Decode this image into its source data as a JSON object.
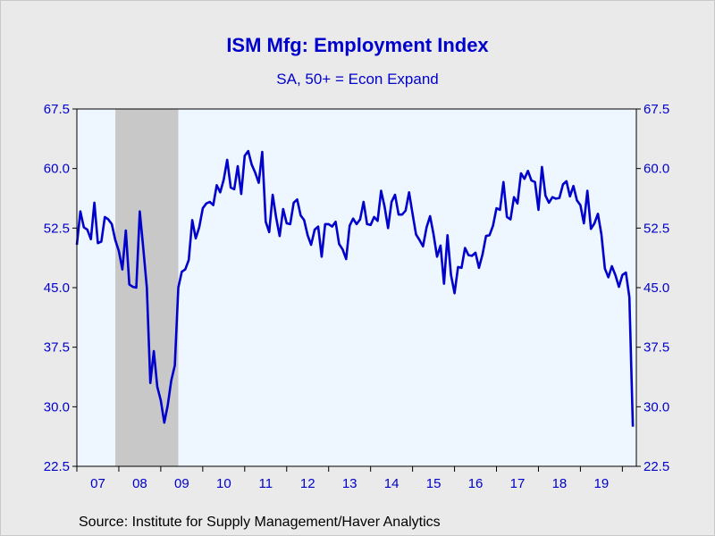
{
  "chart_data": {
    "type": "line",
    "title": "ISM Mfg: Employment Index",
    "subtitle": "SA, 50+ = Econ Expand",
    "source": "Source:  Institute for Supply Management/Haver Analytics",
    "ylim": [
      22.5,
      67.5
    ],
    "yticks": [
      "67.5",
      "60.0",
      "52.5",
      "45.0",
      "37.5",
      "30.0",
      "22.5"
    ],
    "ytick_values": [
      67.5,
      60.0,
      52.5,
      45.0,
      37.5,
      30.0,
      22.5
    ],
    "xlim": [
      2007.0,
      2020.333
    ],
    "x_tick_labels": [
      "07",
      "08",
      "09",
      "10",
      "11",
      "12",
      "13",
      "14",
      "15",
      "16",
      "17",
      "18",
      "19"
    ],
    "x_tick_years": [
      2007,
      2008,
      2009,
      2010,
      2011,
      2012,
      2013,
      2014,
      2015,
      2016,
      2017,
      2018,
      2019
    ],
    "recession": [
      2007.917,
      2009.417
    ],
    "grid": false,
    "colors": {
      "line": "#0000cc",
      "plot_bg": "#eef6ff",
      "recession": "#c8c8c8",
      "text": "#0000cc"
    },
    "series": [
      {
        "start": "2007-01",
        "values": [
          50.4,
          54.6,
          52.6,
          52.3,
          51.1,
          55.7,
          50.6,
          50.8,
          53.9,
          53.6,
          53.0,
          51.0,
          49.6,
          47.3,
          52.2,
          45.4,
          45.1,
          45.0,
          54.6,
          50.0,
          45.0,
          33.0,
          37.0,
          32.5,
          30.8,
          28.0,
          30.2,
          33.3,
          35.2,
          45.0,
          47.0,
          47.3,
          48.5,
          53.5,
          51.2,
          52.6,
          55.0,
          55.6,
          55.8,
          55.4,
          57.9,
          57.0,
          58.6,
          61.1,
          57.6,
          57.4,
          60.3,
          56.8,
          61.6,
          62.2,
          60.5,
          59.5,
          58.2,
          62.1,
          53.3,
          52.0,
          56.7,
          53.8,
          51.5,
          54.9,
          53.1,
          53.0,
          55.7,
          56.1,
          54.1,
          53.5,
          51.6,
          50.4,
          52.3,
          52.7,
          48.9,
          53.0,
          53.0,
          52.7,
          53.3,
          50.5,
          49.8,
          48.6,
          52.8,
          53.7,
          53.0,
          53.6,
          55.8,
          53.0,
          52.9,
          53.9,
          53.4,
          57.2,
          55.2,
          52.5,
          55.8,
          56.7,
          54.2,
          54.2,
          54.7,
          57.0,
          54.3,
          51.7,
          51.0,
          50.2,
          52.6,
          54.0,
          51.7,
          48.9,
          50.3,
          45.5,
          51.6,
          46.6,
          44.3,
          47.6,
          47.5,
          50.0,
          49.1,
          49.0,
          49.4,
          47.5,
          49.2,
          51.5,
          51.6,
          52.8,
          55.0,
          54.8,
          58.3,
          53.9,
          53.6,
          56.4,
          55.6,
          59.4,
          58.7,
          59.7,
          58.5,
          58.3,
          54.8,
          60.2,
          56.6,
          55.7,
          56.4,
          56.2,
          56.3,
          58.0,
          58.4,
          56.5,
          57.8,
          56.0,
          55.4,
          53.1,
          57.2,
          52.4,
          53.1,
          54.3,
          51.7,
          47.4,
          46.3,
          47.7,
          46.6,
          45.1,
          46.6,
          46.9,
          43.8,
          27.5
        ]
      }
    ]
  }
}
